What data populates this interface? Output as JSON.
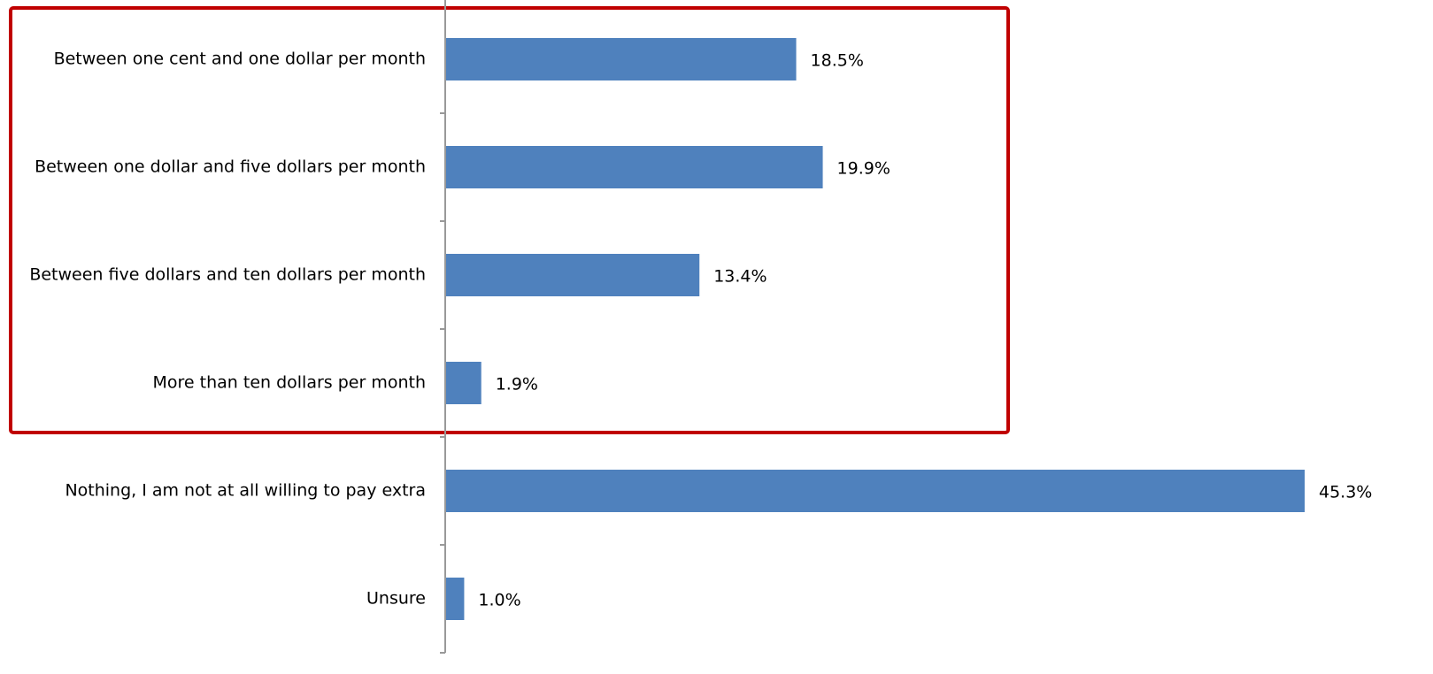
{
  "chart_data": {
    "type": "barh",
    "categories": [
      "Between one cent and one dollar per month",
      "Between one dollar and five dollars per month",
      "Between five dollars and ten dollars per month",
      "More than ten dollars per month",
      "Nothing, I am not at all willing to pay extra",
      "Unsure"
    ],
    "values": [
      18.5,
      19.9,
      13.4,
      1.9,
      45.3,
      1.0
    ],
    "value_labels": [
      "18.5%",
      "19.9%",
      "13.4%",
      "1.9%",
      "45.3%",
      "1.0%"
    ],
    "color": "#4f81bd"
  }
}
